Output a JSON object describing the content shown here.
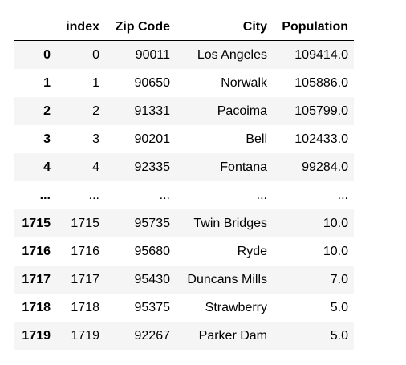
{
  "table": {
    "columns": [
      "",
      "index",
      "Zip Code",
      "City",
      "Population"
    ],
    "rows": [
      {
        "label": "0",
        "index": "0",
        "zip": "90011",
        "city": "Los Angeles",
        "population": "109414.0"
      },
      {
        "label": "1",
        "index": "1",
        "zip": "90650",
        "city": "Norwalk",
        "population": "105886.0"
      },
      {
        "label": "2",
        "index": "2",
        "zip": "91331",
        "city": "Pacoima",
        "population": "105799.0"
      },
      {
        "label": "3",
        "index": "3",
        "zip": "90201",
        "city": "Bell",
        "population": "102433.0"
      },
      {
        "label": "4",
        "index": "4",
        "zip": "92335",
        "city": "Fontana",
        "population": "99284.0"
      },
      {
        "label": "...",
        "index": "...",
        "zip": "...",
        "city": "...",
        "population": "..."
      },
      {
        "label": "1715",
        "index": "1715",
        "zip": "95735",
        "city": "Twin Bridges",
        "population": "10.0"
      },
      {
        "label": "1716",
        "index": "1716",
        "zip": "95680",
        "city": "Ryde",
        "population": "10.0"
      },
      {
        "label": "1717",
        "index": "1717",
        "zip": "95430",
        "city": "Duncans Mills",
        "population": "7.0"
      },
      {
        "label": "1718",
        "index": "1718",
        "zip": "95375",
        "city": "Strawberry",
        "population": "5.0"
      },
      {
        "label": "1719",
        "index": "1719",
        "zip": "92267",
        "city": "Parker Dam",
        "population": "5.0"
      }
    ]
  }
}
